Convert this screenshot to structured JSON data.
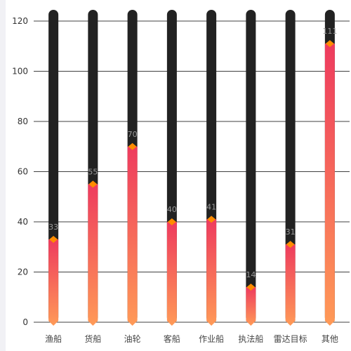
{
  "chart_data": {
    "type": "bar",
    "categories": [
      "渔船",
      "货船",
      "油轮",
      "客船",
      "作业船",
      "执法船",
      "雷达目标",
      "其他"
    ],
    "values": [
      33,
      55,
      70,
      40,
      41,
      14,
      31,
      111
    ],
    "background_max": 120,
    "ylim": [
      0,
      120
    ],
    "yticks": [
      0,
      20,
      40,
      60,
      80,
      100,
      120
    ],
    "grid": true,
    "title": "",
    "xlabel": "",
    "ylabel": "",
    "colors": {
      "background_bar": "#222222",
      "bar_top": "#ee3b5e",
      "bar_bottom": "#ff9a57",
      "marker": "#ff8c00",
      "grid": "#000000",
      "tick_label": "#333333",
      "value_label": "#9a9a9a",
      "category_label": "#444444"
    }
  }
}
